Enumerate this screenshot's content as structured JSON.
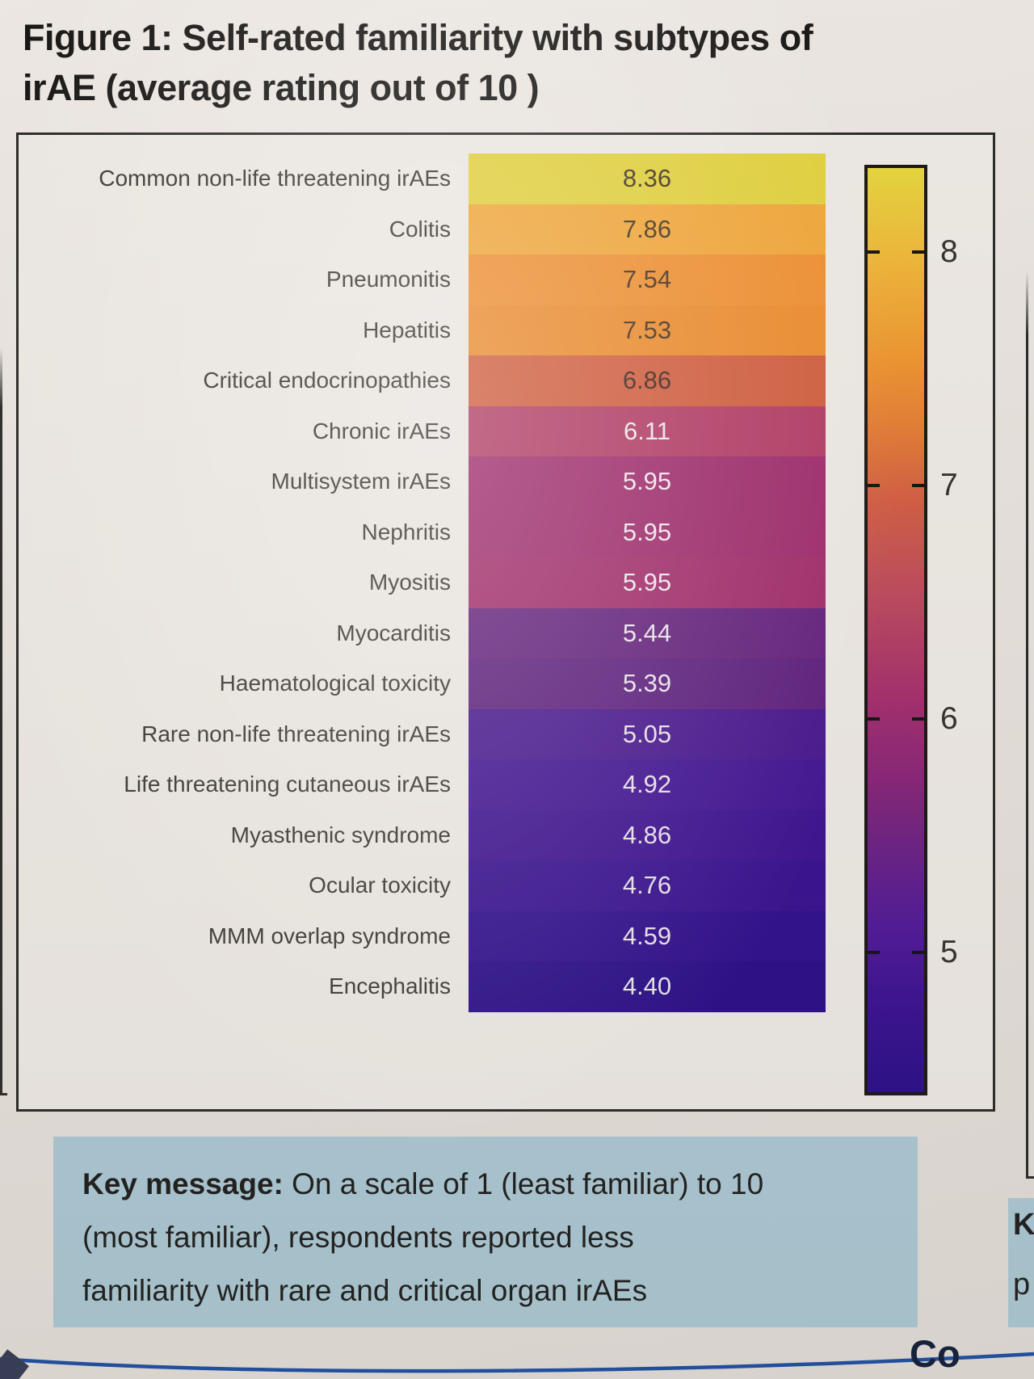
{
  "title": {
    "line1": "Figure 1: Self-rated familiarity with subtypes of",
    "line2": "irAE (average rating out of 10 )"
  },
  "chart_data": {
    "type": "heatmap",
    "title": "Self-rated familiarity with subtypes of irAE (average rating out of 10)",
    "colormap": "plasma",
    "value_range": {
      "vmin": 4.4,
      "vmax": 8.36
    },
    "legend_position": "right-colorbar",
    "categories": [
      "Common non-life threatening irAEs",
      "Colitis",
      "Pneumonitis",
      "Hepatitis",
      "Critical endocrinopathies",
      "Chronic irAEs",
      "Multisystem irAEs",
      "Nephritis",
      "Myositis",
      "Myocarditis",
      "Haematological toxicity",
      "Rare non-life threatening irAEs",
      "Life threatening cutaneous irAEs",
      "Myasthenic syndrome",
      "Ocular toxicity",
      "MMM overlap syndrome",
      "Encephalitis"
    ],
    "values": [
      8.36,
      7.86,
      7.54,
      7.53,
      6.86,
      6.11,
      5.95,
      5.95,
      5.95,
      5.44,
      5.39,
      5.05,
      4.92,
      4.86,
      4.76,
      4.59,
      4.4
    ],
    "rows": [
      {
        "label": "Common non-life threatening irAEs",
        "value_label": "8.36",
        "color": "#e5d43e",
        "text_color": "#453723"
      },
      {
        "label": "Colitis",
        "value_label": "7.86",
        "color": "#f5a93a",
        "text_color": "#49371f"
      },
      {
        "label": "Pneumonitis",
        "value_label": "7.54",
        "color": "#f39232",
        "text_color": "#4a3420"
      },
      {
        "label": "Hepatitis",
        "value_label": "7.53",
        "color": "#f08e2e",
        "text_color": "#4a3420"
      },
      {
        "label": "Critical endocrinopathies",
        "value_label": "6.86",
        "color": "#d55f3f",
        "text_color": "#40261c"
      },
      {
        "label": "Chronic irAEs",
        "value_label": "6.11",
        "color": "#b53c67",
        "text_color": "#f7edf3"
      },
      {
        "label": "Multisystem irAEs",
        "value_label": "5.95",
        "color": "#a12b6e",
        "text_color": "#f7edf3"
      },
      {
        "label": "Nephritis",
        "value_label": "5.95",
        "color": "#a12b6e",
        "text_color": "#f7edf3"
      },
      {
        "label": "Myositis",
        "value_label": "5.95",
        "color": "#a42c6c",
        "text_color": "#f7edf3"
      },
      {
        "label": "Myocarditis",
        "value_label": "5.44",
        "color": "#65217f",
        "text_color": "#f2e9f1"
      },
      {
        "label": "Haematological toxicity",
        "value_label": "5.39",
        "color": "#5e1f80",
        "text_color": "#f2e9f1"
      },
      {
        "label": "Rare non-life threatening irAEs",
        "value_label": "5.05",
        "color": "#481691",
        "text_color": "#efe7f0"
      },
      {
        "label": "Life threatening cutaneous irAEs",
        "value_label": "4.92",
        "color": "#421395",
        "text_color": "#efe7f0"
      },
      {
        "label": "Myasthenic syndrome",
        "value_label": "4.86",
        "color": "#3e1193",
        "text_color": "#efe7f0"
      },
      {
        "label": "Ocular toxicity",
        "value_label": "4.76",
        "color": "#381092",
        "text_color": "#efe7f0"
      },
      {
        "label": "MMM overlap syndrome",
        "value_label": "4.59",
        "color": "#300e8f",
        "text_color": "#efe7f0"
      },
      {
        "label": "Encephalitis",
        "value_label": "4.40",
        "color": "#290d8a",
        "text_color": "#efe7f0"
      }
    ]
  },
  "colorbar": {
    "vmin": 4.4,
    "vmax": 8.36,
    "ticks": [
      {
        "value": 8,
        "label": "8"
      },
      {
        "value": 7,
        "label": "7"
      },
      {
        "value": 6,
        "label": "6"
      },
      {
        "value": 5,
        "label": "5"
      }
    ]
  },
  "key_message": {
    "bold_prefix": "Key message:",
    "line1_rest": " On a scale of 1 (least familiar) to 10",
    "line2": "(most familiar), respondents reported less",
    "line3": "familiarity with rare and critical organ irAEs",
    "background_color": "#adcbd7"
  },
  "fragments": {
    "bottom_right_text": "Co",
    "adjacent_key_letter_top": "K",
    "adjacent_key_letter_bottom": "p"
  },
  "accent_colors": {
    "divider_blue": "#1d4fa5",
    "box_border": "#2b2926"
  }
}
